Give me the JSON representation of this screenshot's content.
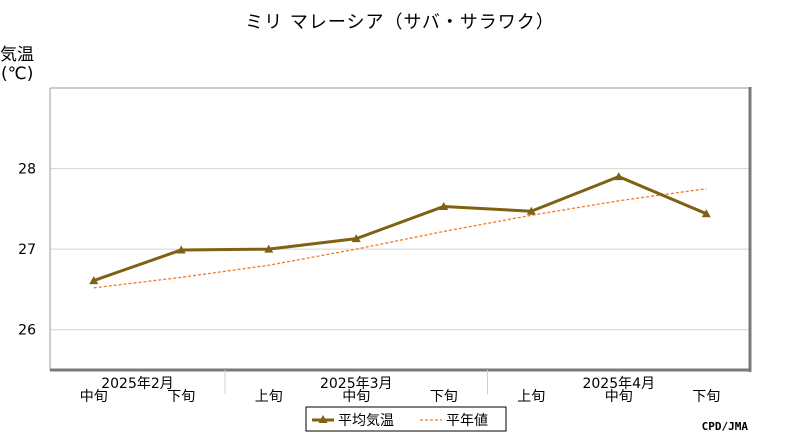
{
  "chart_data": {
    "type": "line",
    "title": "ミリ マレーシア（サバ・サラワク）",
    "ylabel_line1": "気温",
    "ylabel_line2": "(℃)",
    "ylim": [
      25.5,
      29.0
    ],
    "yticks": [
      26,
      27,
      28
    ],
    "grid": true,
    "months": [
      {
        "label": "2025年2月",
        "start": 0,
        "end": 1
      },
      {
        "label": "2025年3月",
        "start": 2,
        "end": 4
      },
      {
        "label": "2025年4月",
        "start": 5,
        "end": 7
      }
    ],
    "categories": [
      "中旬",
      "下旬",
      "上旬",
      "中旬",
      "下旬",
      "上旬",
      "中旬",
      "下旬"
    ],
    "series": [
      {
        "name": "平均気温",
        "style": "solid-marker",
        "color": "#7f6114",
        "values": [
          26.61,
          26.99,
          27.0,
          27.13,
          27.53,
          27.47,
          27.9,
          27.44
        ]
      },
      {
        "name": "平年値",
        "style": "dashed",
        "color": "#f07a28",
        "values": [
          26.52,
          26.65,
          26.8,
          27.0,
          27.22,
          27.42,
          27.6,
          27.75
        ]
      }
    ],
    "legend": "bottom-center",
    "credit": "CPD/JMA"
  }
}
